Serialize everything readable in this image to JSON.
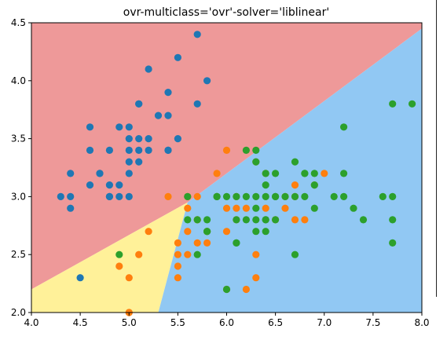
{
  "chart_data": {
    "type": "scatter",
    "title": "ovr-multiclass='ovr'-solver='liblinear'",
    "xlabel": "",
    "ylabel": "",
    "xlim": [
      4.0,
      8.0
    ],
    "ylim": [
      2.0,
      4.5
    ],
    "xticks": [
      "4.0",
      "4.5",
      "5.0",
      "5.5",
      "6.0",
      "6.5",
      "7.0",
      "7.5",
      "8.0"
    ],
    "yticks": [
      "2.0",
      "2.5",
      "3.0",
      "3.5",
      "4.0",
      "4.5"
    ],
    "grid": false,
    "legend": "none",
    "regions": [
      {
        "class": 0,
        "color": "#ee9999",
        "polygon": [
          [
            4.0,
            2.2
          ],
          [
            4.0,
            4.5
          ],
          [
            8.0,
            4.5
          ],
          [
            8.0,
            4.45
          ],
          [
            5.6,
            2.95
          ]
        ]
      },
      {
        "class": 1,
        "color": "#fff199",
        "polygon": [
          [
            4.0,
            2.0
          ],
          [
            4.0,
            2.2
          ],
          [
            5.6,
            2.95
          ],
          [
            5.3,
            2.0
          ]
        ]
      },
      {
        "class": 2,
        "color": "#91c8f3",
        "polygon": [
          [
            5.3,
            2.0
          ],
          [
            5.6,
            2.95
          ],
          [
            8.0,
            4.45
          ],
          [
            8.0,
            2.0
          ]
        ]
      }
    ],
    "series": [
      {
        "color": "#1f77b4",
        "points": [
          [
            5.1,
            3.5
          ],
          [
            4.9,
            3.0
          ],
          [
            4.7,
            3.2
          ],
          [
            4.6,
            3.1
          ],
          [
            5.0,
            3.6
          ],
          [
            5.4,
            3.9
          ],
          [
            4.6,
            3.4
          ],
          [
            5.0,
            3.4
          ],
          [
            4.4,
            2.9
          ],
          [
            4.9,
            3.1
          ],
          [
            5.4,
            3.7
          ],
          [
            4.8,
            3.4
          ],
          [
            4.8,
            3.0
          ],
          [
            4.3,
            3.0
          ],
          [
            5.8,
            4.0
          ],
          [
            5.7,
            4.4
          ],
          [
            5.1,
            3.8
          ],
          [
            5.7,
            3.8
          ],
          [
            5.4,
            3.4
          ],
          [
            4.6,
            3.6
          ],
          [
            5.1,
            3.3
          ],
          [
            5.0,
            3.0
          ],
          [
            5.2,
            3.5
          ],
          [
            5.2,
            3.4
          ],
          [
            4.7,
            3.2
          ],
          [
            4.8,
            3.1
          ],
          [
            5.2,
            4.1
          ],
          [
            5.5,
            4.2
          ],
          [
            5.5,
            3.5
          ],
          [
            4.9,
            3.6
          ],
          [
            4.4,
            3.0
          ],
          [
            4.5,
            2.3
          ],
          [
            4.4,
            3.2
          ],
          [
            5.0,
            3.5
          ],
          [
            5.1,
            3.8
          ],
          [
            4.8,
            3.0
          ],
          [
            5.3,
            3.7
          ],
          [
            5.0,
            3.3
          ],
          [
            5.4,
            3.4
          ],
          [
            5.0,
            3.2
          ],
          [
            5.1,
            3.4
          ]
        ]
      },
      {
        "color": "#ff7f0e",
        "points": [
          [
            7.0,
            3.2
          ],
          [
            6.4,
            3.2
          ],
          [
            6.9,
            3.1
          ],
          [
            5.5,
            2.3
          ],
          [
            6.5,
            2.8
          ],
          [
            5.7,
            2.8
          ],
          [
            6.3,
            3.3
          ],
          [
            4.9,
            2.4
          ],
          [
            6.6,
            2.9
          ],
          [
            5.2,
            2.7
          ],
          [
            5.0,
            2.0
          ],
          [
            5.9,
            3.0
          ],
          [
            6.0,
            2.2
          ],
          [
            6.1,
            2.9
          ],
          [
            5.6,
            2.9
          ],
          [
            6.7,
            3.1
          ],
          [
            5.6,
            3.0
          ],
          [
            5.8,
            2.7
          ],
          [
            6.2,
            2.2
          ],
          [
            5.6,
            2.5
          ],
          [
            5.9,
            3.2
          ],
          [
            6.1,
            2.8
          ],
          [
            6.3,
            2.5
          ],
          [
            6.4,
            2.9
          ],
          [
            6.8,
            2.8
          ],
          [
            6.0,
            2.9
          ],
          [
            5.7,
            2.6
          ],
          [
            5.5,
            2.4
          ],
          [
            5.8,
            2.7
          ],
          [
            6.0,
            2.7
          ],
          [
            5.4,
            3.0
          ],
          [
            6.0,
            3.4
          ],
          [
            6.3,
            2.3
          ],
          [
            5.5,
            2.5
          ],
          [
            6.1,
            3.0
          ],
          [
            5.8,
            2.6
          ],
          [
            5.0,
            2.3
          ],
          [
            5.7,
            3.0
          ],
          [
            6.2,
            2.9
          ],
          [
            5.1,
            2.5
          ],
          [
            5.7,
            2.8
          ],
          [
            6.6,
            3.0
          ],
          [
            6.7,
            3.0
          ],
          [
            6.7,
            2.8
          ],
          [
            5.5,
            2.6
          ],
          [
            5.6,
            2.7
          ],
          [
            5.0,
            2.0
          ]
        ]
      },
      {
        "color": "#2ca02c",
        "points": [
          [
            6.3,
            3.3
          ],
          [
            5.8,
            2.7
          ],
          [
            7.1,
            3.0
          ],
          [
            6.5,
            3.0
          ],
          [
            7.6,
            3.0
          ],
          [
            4.9,
            2.5
          ],
          [
            7.3,
            2.9
          ],
          [
            6.7,
            2.5
          ],
          [
            7.2,
            3.6
          ],
          [
            6.4,
            2.7
          ],
          [
            6.8,
            3.0
          ],
          [
            5.7,
            2.5
          ],
          [
            6.4,
            3.2
          ],
          [
            7.7,
            3.8
          ],
          [
            7.7,
            2.6
          ],
          [
            6.0,
            2.2
          ],
          [
            6.9,
            3.2
          ],
          [
            5.6,
            2.8
          ],
          [
            7.7,
            2.8
          ],
          [
            6.3,
            2.7
          ],
          [
            6.7,
            3.3
          ],
          [
            7.2,
            3.2
          ],
          [
            6.2,
            2.8
          ],
          [
            6.1,
            3.0
          ],
          [
            7.2,
            3.0
          ],
          [
            7.4,
            2.8
          ],
          [
            7.9,
            3.8
          ],
          [
            6.3,
            2.8
          ],
          [
            6.1,
            2.6
          ],
          [
            7.7,
            3.0
          ],
          [
            6.4,
            3.1
          ],
          [
            6.9,
            3.1
          ],
          [
            5.8,
            2.7
          ],
          [
            6.8,
            3.2
          ],
          [
            6.7,
            3.0
          ],
          [
            6.5,
            3.0
          ],
          [
            6.2,
            3.4
          ],
          [
            5.9,
            3.0
          ],
          [
            6.9,
            2.9
          ],
          [
            6.6,
            3.0
          ],
          [
            6.8,
            3.2
          ],
          [
            5.9,
            3.0
          ],
          [
            6.3,
            3.4
          ],
          [
            6.4,
            2.8
          ],
          [
            6.5,
            3.2
          ],
          [
            6.1,
            2.6
          ],
          [
            5.7,
            2.8
          ],
          [
            6.0,
            3.0
          ],
          [
            6.1,
            2.8
          ],
          [
            6.3,
            3.0
          ],
          [
            6.4,
            3.0
          ],
          [
            6.5,
            2.8
          ],
          [
            5.8,
            2.8
          ],
          [
            6.2,
            3.0
          ],
          [
            6.3,
            2.9
          ],
          [
            6.4,
            2.8
          ],
          [
            5.6,
            3.0
          ]
        ]
      }
    ]
  }
}
